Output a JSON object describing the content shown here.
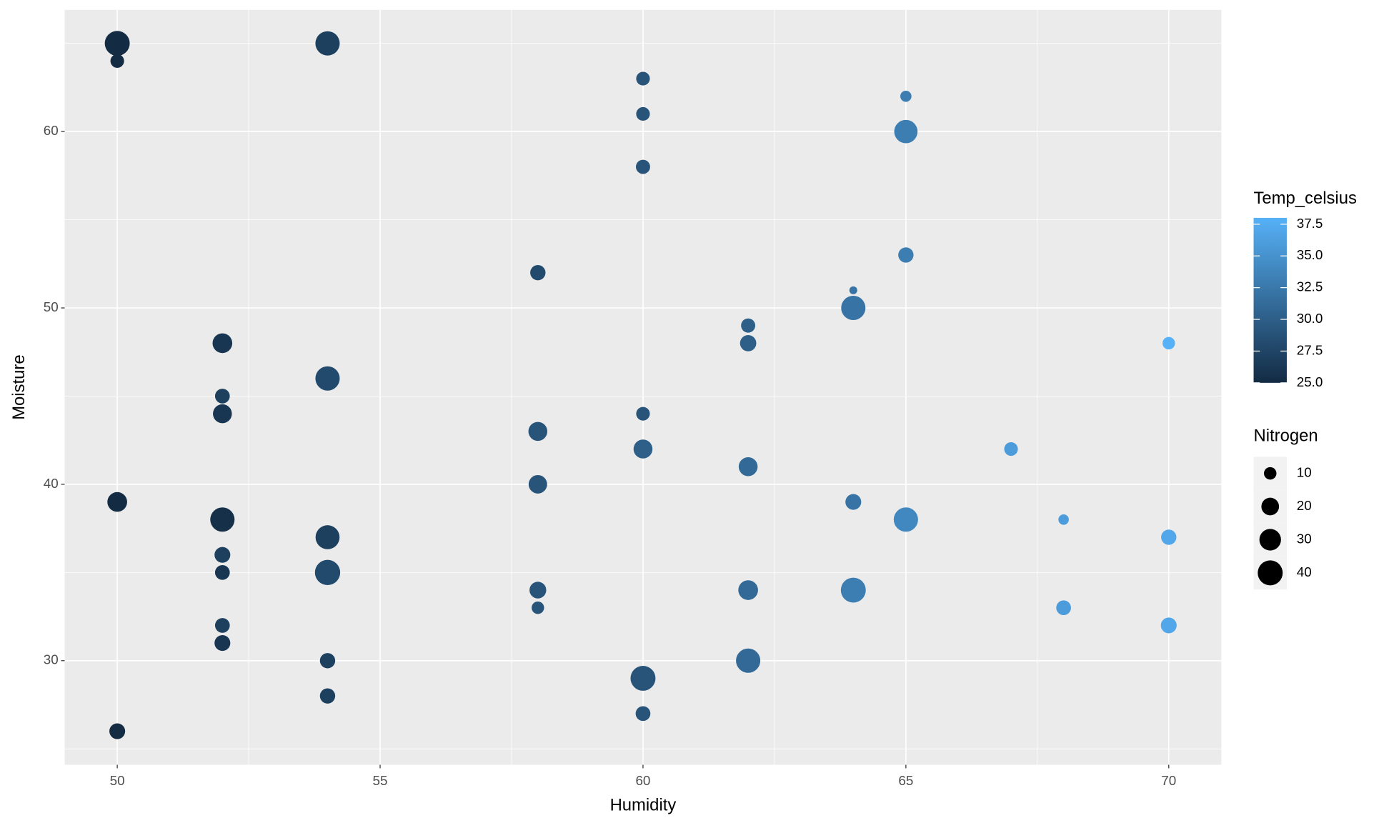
{
  "chart_data": {
    "type": "scatter",
    "x_label": "Humidity",
    "y_label": "Moisture",
    "x": [
      50,
      50,
      54,
      60,
      60,
      60,
      65,
      65,
      65,
      58,
      64,
      64,
      62,
      62,
      70,
      52,
      54,
      52,
      52,
      60,
      58,
      60,
      67,
      62,
      50,
      58,
      64,
      52,
      65,
      68,
      54,
      70,
      52,
      52,
      54,
      58,
      62,
      64,
      58,
      68,
      70,
      52,
      52,
      54,
      62,
      60,
      54,
      60,
      50
    ],
    "y": [
      65,
      64,
      65,
      63,
      61,
      58,
      62,
      60,
      53,
      52,
      51,
      50,
      49,
      48,
      48,
      48,
      46,
      45,
      44,
      44,
      43,
      42,
      42,
      41,
      39,
      40,
      39,
      38,
      38,
      38,
      37,
      37,
      36,
      35,
      35,
      34,
      34,
      34,
      33,
      33,
      32,
      32,
      31,
      30,
      30,
      29,
      28,
      27,
      26
    ],
    "size": [
      40,
      12,
      38,
      12,
      12,
      13,
      8,
      35,
      15,
      15,
      4,
      38,
      13,
      17,
      10,
      25,
      38,
      14,
      23,
      12,
      23,
      23,
      12,
      23,
      25,
      22,
      16,
      38,
      38,
      7,
      37,
      15,
      16,
      14,
      41,
      18,
      25,
      40,
      10,
      14,
      16,
      14,
      16,
      15,
      38,
      40,
      15,
      14,
      16
    ],
    "color_values": [
      25,
      25,
      27,
      29,
      29,
      29,
      33,
      33,
      33,
      28,
      32,
      32,
      30,
      30,
      38,
      26,
      28,
      27,
      26,
      29,
      29,
      30,
      36,
      31,
      25,
      29,
      32,
      25.5,
      34,
      36,
      27,
      37,
      27,
      26,
      28,
      29,
      31,
      33,
      29,
      36,
      37,
      27,
      26,
      27,
      31,
      29,
      27,
      29,
      25
    ],
    "xlim": [
      49,
      71
    ],
    "ylim": [
      24.1,
      66.9
    ],
    "xticks": [
      50,
      55,
      60,
      65,
      70
    ],
    "yticks": [
      30,
      40,
      50,
      60
    ],
    "grid": true,
    "color_legend": {
      "title": "Temp_celsius",
      "low_color": "#132B43",
      "high_color": "#56B1F7",
      "ticks": [
        {
          "value": 25,
          "label": "25.0"
        },
        {
          "value": 27.5,
          "label": "27.5"
        },
        {
          "value": 30,
          "label": "30.0"
        },
        {
          "value": 32.5,
          "label": "32.5"
        },
        {
          "value": 35,
          "label": "35.0"
        },
        {
          "value": 37.5,
          "label": "37.5"
        }
      ]
    },
    "size_legend": {
      "title": "Nitrogen",
      "color": "#000000",
      "ticks": [
        10,
        20,
        30,
        40
      ]
    }
  }
}
